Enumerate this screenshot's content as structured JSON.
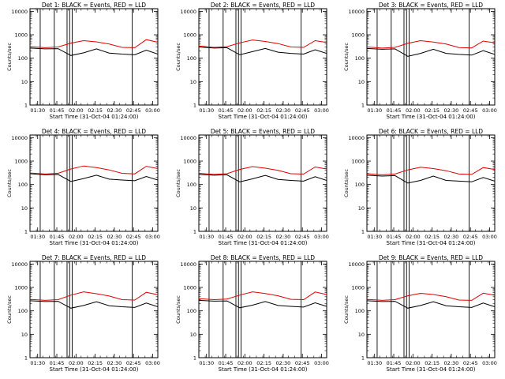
{
  "colors": {
    "events": "#000000",
    "lld": "#e00000",
    "axis": "#000000",
    "background": "#ffffff"
  },
  "x_axis_label": "Start Time (31-Oct-04 01:24:00)",
  "y_axis_label": "Counts/sec",
  "chart_data": [
    {
      "type": "line",
      "title": "Det 1:  BLACK = Events, RED = LLD",
      "xlabel": "Start Time (31-Oct-04 01:24:00)",
      "ylabel": "Counts/sec",
      "y_scale": "log",
      "ylim": [
        1,
        13000
      ],
      "y_ticks": [
        1,
        10,
        100,
        1000,
        10000
      ],
      "x_ticks": [
        "01:30",
        "01:45",
        "02:00",
        "02:15",
        "02:30",
        "02:45",
        "03:00"
      ],
      "xlim_minutes": [
        84,
        184
      ],
      "vertical_lines_minutes": [
        92,
        103,
        113,
        115,
        117,
        164
      ],
      "series": [
        {
          "name": "BLACK = Events",
          "x_minutes": [
            84,
            96,
            106,
            116,
            126,
            136,
            146,
            156,
            166,
            175,
            184
          ],
          "values": [
            270,
            250,
            255,
            130,
            170,
            250,
            165,
            150,
            140,
            220,
            150
          ]
        },
        {
          "name": "RED = LLD",
          "x_minutes": [
            84,
            96,
            106,
            116,
            126,
            136,
            146,
            156,
            166,
            175,
            184
          ],
          "values": [
            310,
            280,
            300,
            440,
            560,
            500,
            400,
            290,
            280,
            620,
            480
          ]
        }
      ]
    },
    {
      "type": "line",
      "title": "Det 2:  BLACK = Events, RED = LLD",
      "xlabel": "Start Time (31-Oct-04 01:24:00)",
      "ylabel": "Counts/sec",
      "y_scale": "log",
      "ylim": [
        1,
        13000
      ],
      "y_ticks": [
        1,
        10,
        100,
        1000,
        10000
      ],
      "x_ticks": [
        "01:30",
        "01:45",
        "02:00",
        "02:15",
        "02:30",
        "02:45",
        "03:00"
      ],
      "xlim_minutes": [
        84,
        184
      ],
      "vertical_lines_minutes": [
        92,
        103,
        113,
        115,
        117,
        164
      ],
      "series": [
        {
          "name": "BLACK = Events",
          "x_minutes": [
            84,
            96,
            106,
            116,
            126,
            136,
            146,
            156,
            166,
            175,
            184
          ],
          "values": [
            300,
            270,
            280,
            140,
            190,
            260,
            180,
            160,
            150,
            230,
            160
          ]
        },
        {
          "name": "RED = LLD",
          "x_minutes": [
            84,
            96,
            106,
            116,
            126,
            136,
            146,
            156,
            166,
            175,
            184
          ],
          "values": [
            330,
            290,
            310,
            450,
            600,
            520,
            420,
            300,
            290,
            560,
            470
          ]
        }
      ]
    },
    {
      "type": "line",
      "title": "Det 3:  BLACK = Events, RED = LLD",
      "xlabel": "Start Time (31-Oct-04 01:24:00)",
      "ylabel": "Counts/sec",
      "y_scale": "log",
      "ylim": [
        1,
        13000
      ],
      "y_ticks": [
        1,
        10,
        100,
        1000,
        10000
      ],
      "x_ticks": [
        "01:30",
        "01:45",
        "02:00",
        "02:15",
        "02:30",
        "02:45",
        "03:00"
      ],
      "xlim_minutes": [
        84,
        184
      ],
      "vertical_lines_minutes": [
        92,
        103,
        113,
        115,
        117,
        164
      ],
      "series": [
        {
          "name": "BLACK = Events",
          "x_minutes": [
            84,
            96,
            106,
            116,
            126,
            136,
            146,
            156,
            166,
            175,
            184
          ],
          "values": [
            260,
            240,
            250,
            120,
            160,
            240,
            160,
            145,
            135,
            210,
            145
          ]
        },
        {
          "name": "RED = LLD",
          "x_minutes": [
            84,
            96,
            106,
            116,
            126,
            136,
            146,
            156,
            166,
            175,
            184
          ],
          "values": [
            300,
            270,
            290,
            430,
            560,
            490,
            400,
            285,
            275,
            540,
            450
          ]
        }
      ]
    },
    {
      "type": "line",
      "title": "Det 4:  BLACK = Events, RED = LLD",
      "xlabel": "Start Time (31-Oct-04 01:24:00)",
      "ylabel": "Counts/sec",
      "y_scale": "log",
      "ylim": [
        1,
        13000
      ],
      "y_ticks": [
        1,
        10,
        100,
        1000,
        10000
      ],
      "x_ticks": [
        "01:30",
        "01:45",
        "02:00",
        "02:15",
        "02:30",
        "02:45",
        "03:00"
      ],
      "xlim_minutes": [
        84,
        184
      ],
      "vertical_lines_minutes": [
        92,
        103,
        113,
        115,
        117,
        164
      ],
      "series": [
        {
          "name": "BLACK = Events",
          "x_minutes": [
            84,
            96,
            106,
            116,
            126,
            136,
            146,
            156,
            166,
            175,
            184
          ],
          "values": [
            290,
            260,
            270,
            135,
            180,
            250,
            170,
            155,
            145,
            220,
            155
          ]
        },
        {
          "name": "RED = LLD",
          "x_minutes": [
            84,
            96,
            106,
            116,
            126,
            136,
            146,
            156,
            166,
            175,
            184
          ],
          "values": [
            310,
            280,
            300,
            460,
            620,
            530,
            420,
            300,
            285,
            600,
            480
          ]
        }
      ]
    },
    {
      "type": "line",
      "title": "Det 5:  BLACK = Events, RED = LLD",
      "xlabel": "Start Time (31-Oct-04 01:24:00)",
      "ylabel": "Counts/sec",
      "y_scale": "log",
      "ylim": [
        1,
        13000
      ],
      "y_ticks": [
        1,
        10,
        100,
        1000,
        10000
      ],
      "x_ticks": [
        "01:30",
        "01:45",
        "02:00",
        "02:15",
        "02:30",
        "02:45",
        "03:00"
      ],
      "xlim_minutes": [
        84,
        184
      ],
      "vertical_lines_minutes": [
        92,
        103,
        113,
        115,
        117,
        164
      ],
      "series": [
        {
          "name": "BLACK = Events",
          "x_minutes": [
            84,
            96,
            106,
            116,
            126,
            136,
            146,
            156,
            166,
            175,
            184
          ],
          "values": [
            270,
            250,
            260,
            130,
            175,
            245,
            165,
            150,
            140,
            215,
            150
          ]
        },
        {
          "name": "RED = LLD",
          "x_minutes": [
            84,
            96,
            106,
            116,
            126,
            136,
            146,
            156,
            166,
            175,
            184
          ],
          "values": [
            300,
            270,
            290,
            440,
            580,
            500,
            400,
            290,
            280,
            560,
            460
          ]
        }
      ]
    },
    {
      "type": "line",
      "title": "Det 6:  BLACK = Events, RED = LLD",
      "xlabel": "Start Time (31-Oct-04 01:24:00)",
      "ylabel": "Counts/sec",
      "y_scale": "log",
      "ylim": [
        1,
        13000
      ],
      "y_ticks": [
        1,
        10,
        100,
        1000,
        10000
      ],
      "x_ticks": [
        "01:30",
        "01:45",
        "02:00",
        "02:15",
        "02:30",
        "02:45",
        "03:00"
      ],
      "xlim_minutes": [
        84,
        184
      ],
      "vertical_lines_minutes": [
        92,
        103,
        113,
        115,
        117,
        164
      ],
      "series": [
        {
          "name": "BLACK = Events",
          "x_minutes": [
            84,
            96,
            106,
            116,
            126,
            136,
            146,
            156,
            166,
            175,
            184
          ],
          "values": [
            250,
            230,
            240,
            115,
            150,
            230,
            150,
            140,
            130,
            200,
            140
          ]
        },
        {
          "name": "RED = LLD",
          "x_minutes": [
            84,
            96,
            106,
            116,
            126,
            136,
            146,
            156,
            166,
            175,
            184
          ],
          "values": [
            290,
            260,
            280,
            420,
            550,
            480,
            390,
            280,
            270,
            530,
            440
          ]
        }
      ]
    },
    {
      "type": "line",
      "title": "Det 7:  BLACK = Events, RED = LLD",
      "xlabel": "Start Time (31-Oct-04 01:24:00)",
      "ylabel": "Counts/sec",
      "y_scale": "log",
      "ylim": [
        1,
        13000
      ],
      "y_ticks": [
        1,
        10,
        100,
        1000,
        10000
      ],
      "x_ticks": [
        "01:30",
        "01:45",
        "02:00",
        "02:15",
        "02:30",
        "02:45",
        "03:00"
      ],
      "xlim_minutes": [
        84,
        184
      ],
      "vertical_lines_minutes": [
        92,
        103,
        113,
        115,
        117,
        164
      ],
      "series": [
        {
          "name": "BLACK = Events",
          "x_minutes": [
            84,
            96,
            106,
            116,
            126,
            136,
            146,
            156,
            166,
            175,
            184
          ],
          "values": [
            270,
            250,
            255,
            130,
            170,
            245,
            165,
            150,
            140,
            215,
            150
          ]
        },
        {
          "name": "RED = LLD",
          "x_minutes": [
            84,
            96,
            106,
            116,
            126,
            136,
            146,
            156,
            166,
            175,
            184
          ],
          "values": [
            310,
            280,
            300,
            470,
            650,
            540,
            430,
            300,
            290,
            620,
            490
          ]
        }
      ]
    },
    {
      "type": "line",
      "title": "Det 8:  BLACK = Events, RED = LLD",
      "xlabel": "Start Time (31-Oct-04 01:24:00)",
      "ylabel": "Counts/sec",
      "y_scale": "log",
      "ylim": [
        1,
        13000
      ],
      "y_ticks": [
        1,
        10,
        100,
        1000,
        10000
      ],
      "x_ticks": [
        "01:30",
        "01:45",
        "02:00",
        "02:15",
        "02:30",
        "02:45",
        "03:00"
      ],
      "xlim_minutes": [
        84,
        184
      ],
      "vertical_lines_minutes": [
        92,
        103,
        113,
        115,
        117,
        164
      ],
      "series": [
        {
          "name": "BLACK = Events",
          "x_minutes": [
            84,
            96,
            106,
            116,
            126,
            136,
            146,
            156,
            166,
            175,
            184
          ],
          "values": [
            280,
            260,
            265,
            135,
            175,
            250,
            170,
            155,
            145,
            220,
            155
          ]
        },
        {
          "name": "RED = LLD",
          "x_minutes": [
            84,
            96,
            106,
            116,
            126,
            136,
            146,
            156,
            166,
            175,
            184
          ],
          "values": [
            330,
            300,
            320,
            470,
            650,
            550,
            440,
            310,
            300,
            640,
            500
          ]
        }
      ]
    },
    {
      "type": "line",
      "title": "Det 9:  BLACK = Events, RED = LLD",
      "xlabel": "Start Time (31-Oct-04 01:24:00)",
      "ylabel": "Counts/sec",
      "y_scale": "log",
      "ylim": [
        1,
        13000
      ],
      "y_ticks": [
        1,
        10,
        100,
        1000,
        10000
      ],
      "x_ticks": [
        "01:30",
        "01:45",
        "02:00",
        "02:15",
        "02:30",
        "02:45",
        "03:00"
      ],
      "xlim_minutes": [
        84,
        184
      ],
      "vertical_lines_minutes": [
        92,
        103,
        113,
        115,
        117,
        164
      ],
      "series": [
        {
          "name": "BLACK = Events",
          "x_minutes": [
            84,
            96,
            106,
            116,
            126,
            136,
            146,
            156,
            166,
            175,
            184
          ],
          "values": [
            270,
            250,
            255,
            130,
            170,
            245,
            165,
            150,
            140,
            215,
            150
          ]
        },
        {
          "name": "RED = LLD",
          "x_minutes": [
            84,
            96,
            106,
            116,
            126,
            136,
            146,
            156,
            166,
            175,
            184
          ],
          "values": [
            310,
            280,
            300,
            440,
            560,
            500,
            400,
            290,
            280,
            570,
            460
          ]
        }
      ]
    }
  ]
}
